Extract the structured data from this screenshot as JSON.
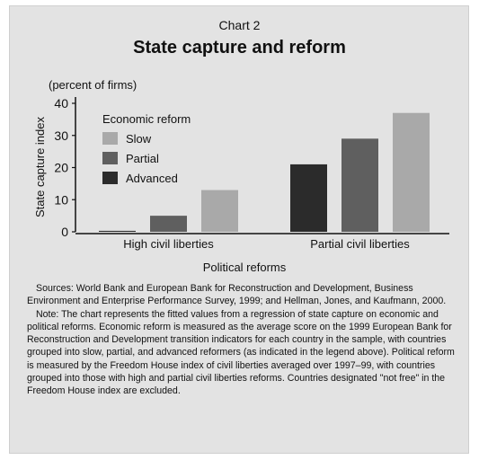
{
  "chart_label": "Chart 2",
  "chart_data": {
    "type": "bar",
    "title": "State capture and reform",
    "unit_label": "(percent of firms)",
    "ylabel": "State capture index",
    "xlabel": "Political reforms",
    "ylim": [
      0,
      40
    ],
    "yticks": [
      0,
      10,
      20,
      30,
      40
    ],
    "grid": false,
    "legend": {
      "title": "Economic reform",
      "position": "top-left"
    },
    "categories": [
      "High civil liberties",
      "Partial civil liberties"
    ],
    "series": [
      {
        "name": "Slow",
        "color": "#a9a9a9",
        "values": [
          13,
          37
        ]
      },
      {
        "name": "Partial",
        "color": "#5f5f5f",
        "values": [
          5,
          29
        ]
      },
      {
        "name": "Advanced",
        "color": "#2b2b2b",
        "values": [
          0.3,
          21
        ]
      }
    ],
    "bar_order": [
      "Advanced",
      "Partial",
      "Slow"
    ]
  },
  "notes": {
    "sources": "Sources: World Bank and European Bank for Reconstruction and Development, Business Environment and Enterprise Performance Survey, 1999; and Hellman, Jones, and Kaufmann, 2000.",
    "note": "Note: The chart represents the fitted values from a regression of state capture on economic and political reforms. Economic reform is measured as the average score on the 1999 European Bank for Reconstruction and Development transition indicators for each country in the sample, with countries grouped into slow, partial, and advanced reformers (as indicated in the legend above). Political reform is measured by the Freedom House index of civil liberties averaged over 1997–99, with countries grouped into those with high and partial civil liberties reforms. Countries designated \"not free\" in the Freedom House index are excluded."
  }
}
